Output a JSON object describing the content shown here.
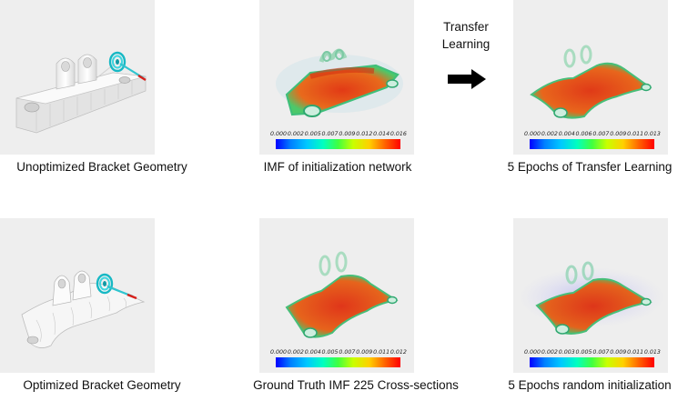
{
  "panels": {
    "unoptimized": {
      "caption": "Unoptimized Bracket Geometry"
    },
    "imf_init": {
      "caption": "IMF of initialization network",
      "ticks": [
        "0.000",
        "0.002",
        "0.005",
        "0.007",
        "0.009",
        "0.012",
        "0.014",
        "0.016"
      ]
    },
    "transfer": {
      "caption": "5 Epochs of Transfer Learning",
      "ticks": [
        "0.000",
        "0.002",
        "0.004",
        "0.006",
        "0.007",
        "0.009",
        "0.011",
        "0.013"
      ]
    },
    "optimized": {
      "caption": "Optimized Bracket Geometry"
    },
    "ground_truth": {
      "caption": "Ground Truth IMF 225 Cross-sections",
      "ticks": [
        "0.000",
        "0.002",
        "0.004",
        "0.005",
        "0.007",
        "0.009",
        "0.011",
        "0.012"
      ]
    },
    "random": {
      "caption": "5 Epochs random initialization",
      "ticks": [
        "0.000",
        "0.002",
        "0.003",
        "0.005",
        "0.007",
        "0.009",
        "0.011",
        "0.013"
      ]
    }
  },
  "transfer_arrow": {
    "line1": "Transfer",
    "line2": "Learning"
  },
  "colors": {
    "panel_bg": "#eeeeee",
    "heat_red": "#e0381a",
    "heat_green": "#3ec85a",
    "mesh": "#ffffff"
  }
}
